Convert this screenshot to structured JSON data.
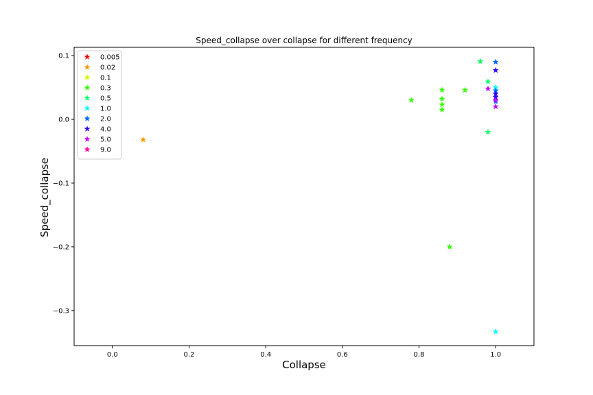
{
  "chart_data": {
    "type": "scatter",
    "title": "Speed_collapse over collapse for different frequency",
    "xlabel": "Collapse",
    "ylabel": "Speed_collapse",
    "xlim": [
      -0.1,
      1.1
    ],
    "ylim": [
      -0.355,
      0.113
    ],
    "xticks": [
      0.0,
      0.2,
      0.4,
      0.6,
      0.8,
      1.0
    ],
    "xtick_labels": [
      "0.0",
      "0.2",
      "0.4",
      "0.6",
      "0.8",
      "1.0"
    ],
    "yticks": [
      0.1,
      0.0,
      -0.1,
      -0.2,
      -0.3
    ],
    "ytick_labels": [
      "0.1",
      "0.0",
      "−0.1",
      "−0.2",
      "−0.3"
    ],
    "marker": "star",
    "grid": false,
    "legend_position": "upper-left",
    "series": [
      {
        "name": "0.005",
        "color": "#ff0000",
        "points": []
      },
      {
        "name": "0.02",
        "color": "#ff9900",
        "points": [
          [
            0.08,
            -0.032
          ]
        ]
      },
      {
        "name": "0.1",
        "color": "#ccff00",
        "points": []
      },
      {
        "name": "0.3",
        "color": "#33ff00",
        "points": [
          [
            0.78,
            0.03
          ],
          [
            0.86,
            0.046
          ],
          [
            0.86,
            0.032
          ],
          [
            0.86,
            0.023
          ],
          [
            0.86,
            0.015
          ],
          [
            0.92,
            0.046
          ],
          [
            0.88,
            -0.2
          ]
        ]
      },
      {
        "name": "0.5",
        "color": "#00ff66",
        "points": [
          [
            0.96,
            0.091
          ],
          [
            0.98,
            0.059
          ],
          [
            0.98,
            -0.02
          ]
        ]
      },
      {
        "name": "1.0",
        "color": "#00ffff",
        "points": [
          [
            1.0,
            0.05
          ],
          [
            1.0,
            -0.333
          ]
        ]
      },
      {
        "name": "2.0",
        "color": "#0066ff",
        "points": [
          [
            1.0,
            0.09
          ],
          [
            1.0,
            0.028
          ],
          [
            1.0,
            0.045
          ]
        ]
      },
      {
        "name": "4.0",
        "color": "#3300ff",
        "points": [
          [
            1.0,
            0.077
          ],
          [
            1.0,
            0.04
          ],
          [
            1.0,
            0.035
          ]
        ]
      },
      {
        "name": "5.0",
        "color": "#cc00ff",
        "points": [
          [
            0.98,
            0.048
          ],
          [
            1.0,
            0.02
          ],
          [
            1.0,
            0.03
          ]
        ]
      },
      {
        "name": "9.0",
        "color": "#ff0099",
        "points": []
      }
    ]
  }
}
